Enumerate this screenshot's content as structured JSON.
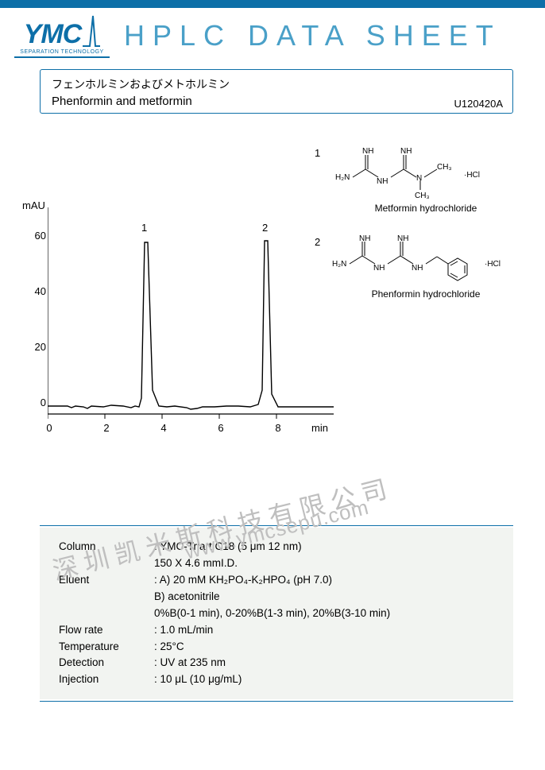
{
  "header": {
    "logo_text": "YMC",
    "logo_tagline": "SEPARATION TECHNOLOGY",
    "doc_title": "HPLC DATA SHEET"
  },
  "title_box": {
    "jp": "フェンホルミンおよびメトホルミン",
    "en": "Phenformin and metformin",
    "sheet_id": "U120420A"
  },
  "chart": {
    "type": "chromatogram",
    "y_label": "mAU",
    "x_label": "min",
    "xlim": [
      0,
      10
    ],
    "xtick_step": 2,
    "xticks": [
      "0",
      "2",
      "4",
      "6",
      "8"
    ],
    "ylim": [
      -5,
      65
    ],
    "yticks": [
      "0",
      "20",
      "40",
      "60"
    ],
    "line_color": "#000000",
    "axis_color": "#000000",
    "background_color": "#ffffff",
    "label_fontsize": 13,
    "peaks": [
      {
        "label": "1",
        "rt": 3.4,
        "height": 55
      },
      {
        "label": "2",
        "rt": 7.6,
        "height": 56
      }
    ],
    "baseline": -2
  },
  "structures": [
    {
      "num": "1",
      "caption": "Metformin hydrochloride",
      "salt": "·HCl"
    },
    {
      "num": "2",
      "caption": "Phenformin hydrochloride",
      "salt": "·HCl"
    }
  ],
  "watermark": {
    "cn": "深圳凯米斯科技有限公司",
    "url": "www.ymcsepu.com"
  },
  "conditions": {
    "rows": [
      {
        "key": "Column",
        "vals": [
          "YMC-Triart C18 (5 μm 12 nm)",
          "150 X 4.6 mmI.D."
        ]
      },
      {
        "key": "Eluent",
        "vals": [
          "A) 20 mM KH₂PO₄-K₂HPO₄ (pH 7.0)",
          "B) acetonitrile",
          "0%B(0-1 min), 0-20%B(1-3 min), 20%B(3-10 min)"
        ]
      },
      {
        "key": "Flow rate",
        "vals": [
          "1.0 mL/min"
        ]
      },
      {
        "key": "Temperature",
        "vals": [
          "25°C"
        ]
      },
      {
        "key": "Detection",
        "vals": [
          "UV at 235 nm"
        ]
      },
      {
        "key": "Injection",
        "vals": [
          "10 μL (10 μg/mL)"
        ]
      }
    ],
    "bg_color": "#f2f4f1",
    "border_color": "#0d6fa8"
  }
}
